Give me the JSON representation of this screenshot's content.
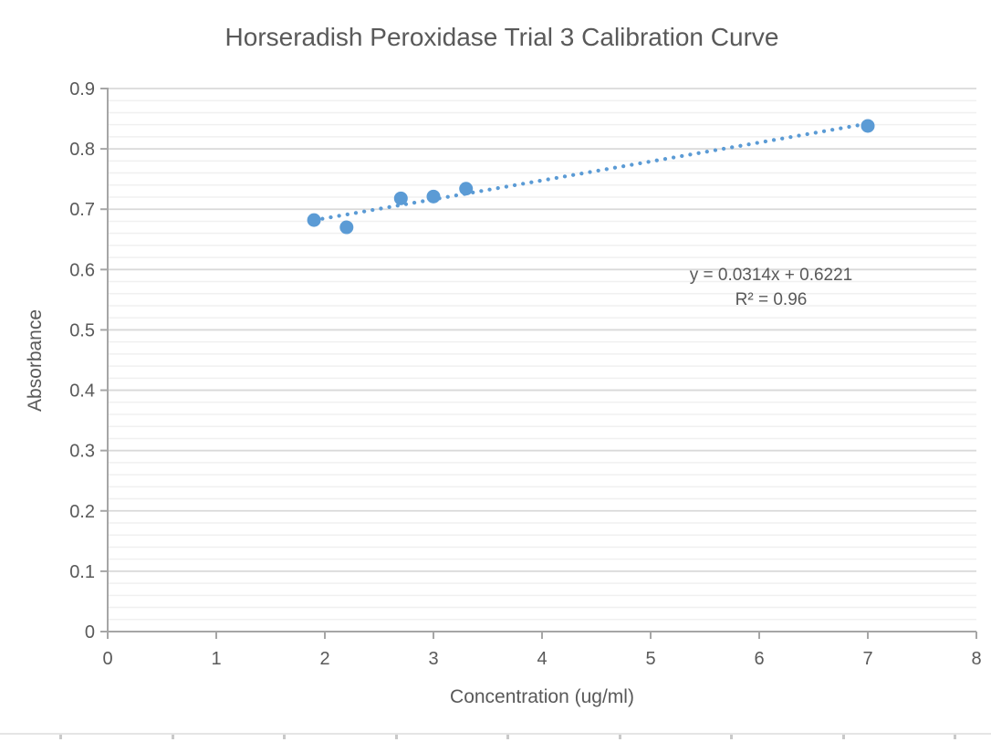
{
  "chart_data": {
    "type": "scatter",
    "title": "Horseradish Peroxidase Trial 3 Calibration Curve",
    "xlabel": "Concentration (ug/ml)",
    "ylabel": "Absorbance",
    "xlim": [
      0,
      8
    ],
    "ylim": [
      0,
      0.9
    ],
    "x_ticks": [
      "0",
      "1",
      "2",
      "3",
      "4",
      "5",
      "6",
      "7",
      "8"
    ],
    "y_ticks": [
      "0",
      "0.1",
      "0.2",
      "0.3",
      "0.4",
      "0.5",
      "0.6",
      "0.7",
      "0.8",
      "0.9"
    ],
    "y_minor_step": 0.02,
    "grid": "horizontal major and minor gridlines, no vertical gridlines",
    "legend": "none",
    "points": [
      [
        1.9,
        0.682
      ],
      [
        2.2,
        0.67
      ],
      [
        2.7,
        0.718
      ],
      [
        3.0,
        0.721
      ],
      [
        3.3,
        0.734
      ],
      [
        7.0,
        0.838
      ]
    ],
    "trendline": {
      "slope": 0.0314,
      "intercept": 0.6221,
      "x_start": 1.9,
      "x_end": 7.0,
      "style": "dotted",
      "equation_label": "y = 0.0314x + 0.6221",
      "r_squared_label": "R² = 0.96"
    }
  },
  "colors": {
    "marker": "#5b9bd5",
    "trendline": "#5b9bd5",
    "major_grid": "#d9d9d9",
    "minor_grid": "#f0f0f0",
    "axis_line": "#a6a6a6",
    "text": "#595959",
    "sheet_edge": "#e5e5e5",
    "sheet_tick": "#c9c9c9"
  }
}
